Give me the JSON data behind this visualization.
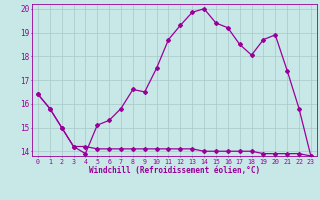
{
  "xlabel": "Windchill (Refroidissement éolien,°C)",
  "background_color": "#c8e8e8",
  "grid_color": "#a8c8c8",
  "line_color": "#990099",
  "xlim": [
    -0.5,
    23.5
  ],
  "ylim": [
    13.8,
    20.2
  ],
  "yticks": [
    14,
    15,
    16,
    17,
    18,
    19,
    20
  ],
  "xticks": [
    0,
    1,
    2,
    3,
    4,
    5,
    6,
    7,
    8,
    9,
    10,
    11,
    12,
    13,
    14,
    15,
    16,
    17,
    18,
    19,
    20,
    21,
    22,
    23
  ],
  "series1_x": [
    0,
    1,
    2,
    3,
    4,
    5,
    6,
    7,
    8,
    9,
    10,
    11,
    12,
    13,
    14,
    15,
    16,
    17,
    18,
    19,
    20,
    21,
    22,
    23
  ],
  "series1_y": [
    16.4,
    15.8,
    15.0,
    14.2,
    13.9,
    15.1,
    15.3,
    15.8,
    16.6,
    16.5,
    17.5,
    18.7,
    19.3,
    19.85,
    20.0,
    19.4,
    19.2,
    18.5,
    18.05,
    18.7,
    18.9,
    17.4,
    15.8,
    13.8
  ],
  "series2_x": [
    0,
    1,
    2,
    3,
    4,
    5,
    6,
    7,
    8,
    9,
    10,
    11,
    12,
    13,
    14,
    15,
    16,
    17,
    18,
    19,
    20,
    21,
    22,
    23
  ],
  "series2_y": [
    16.4,
    15.8,
    15.0,
    14.2,
    14.2,
    14.1,
    14.1,
    14.1,
    14.1,
    14.1,
    14.1,
    14.1,
    14.1,
    14.1,
    14.0,
    14.0,
    14.0,
    14.0,
    14.0,
    13.9,
    13.9,
    13.9,
    13.9,
    13.8
  ],
  "marker": "D",
  "markersize": 2.0,
  "linewidth": 0.9
}
